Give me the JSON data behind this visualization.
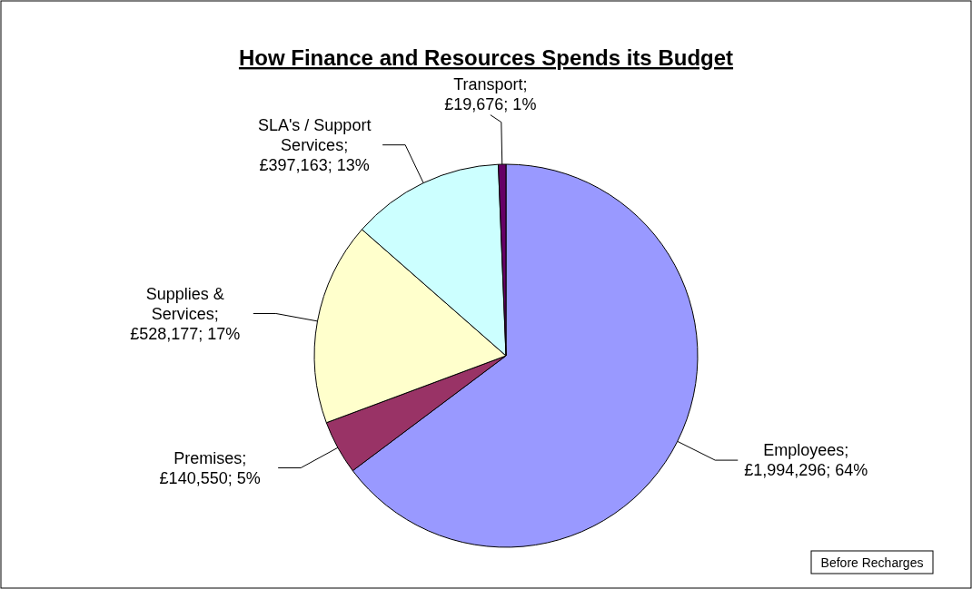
{
  "chart_data": {
    "type": "pie",
    "title": "How Finance and Resources Spends its Budget",
    "categories": [
      "Employees",
      "Premises",
      "Supplies & Services",
      "SLA's / Support Services",
      "Transport"
    ],
    "values": [
      1994296,
      140550,
      528177,
      397163,
      19676
    ],
    "colors": [
      "#9999ff",
      "#993366",
      "#ffffcc",
      "#ccffff",
      "#660066"
    ],
    "value_labels": [
      "; £1,994,296; 64%",
      "; £140,550; 5%",
      "; £528,177; 17%",
      "; £397,163; 13%",
      "; £19,676; 1%"
    ],
    "legend": false,
    "annotations": [
      "Before Recharges"
    ]
  }
}
